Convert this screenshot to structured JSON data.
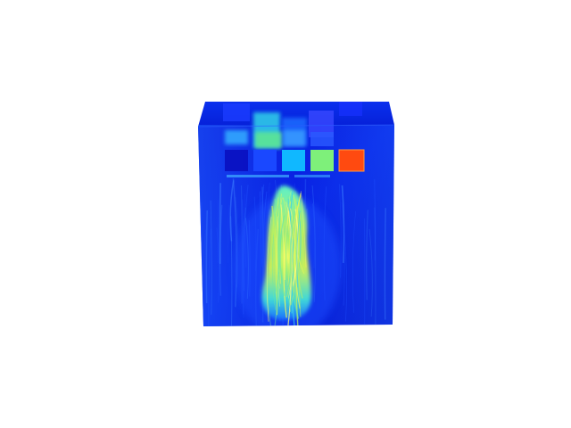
{
  "viewport": {
    "background": "#ffffff"
  },
  "volume": {
    "colormap": "jet",
    "colors": {
      "deep_blue": "#00008f",
      "blue": "#0000ff",
      "medium_blue": "#1a3cff",
      "cyan": "#00c8ff",
      "aqua": "#38e0d8",
      "green": "#7ff57a",
      "yellow": "#e8f552",
      "orange": "#ff7a10",
      "red": "#ff3200"
    },
    "swatch_levels": [
      0.1,
      0.3,
      0.5,
      0.7,
      0.95
    ],
    "top_blocks_levels": [
      0.25,
      0.55,
      0.35,
      0.4
    ]
  }
}
